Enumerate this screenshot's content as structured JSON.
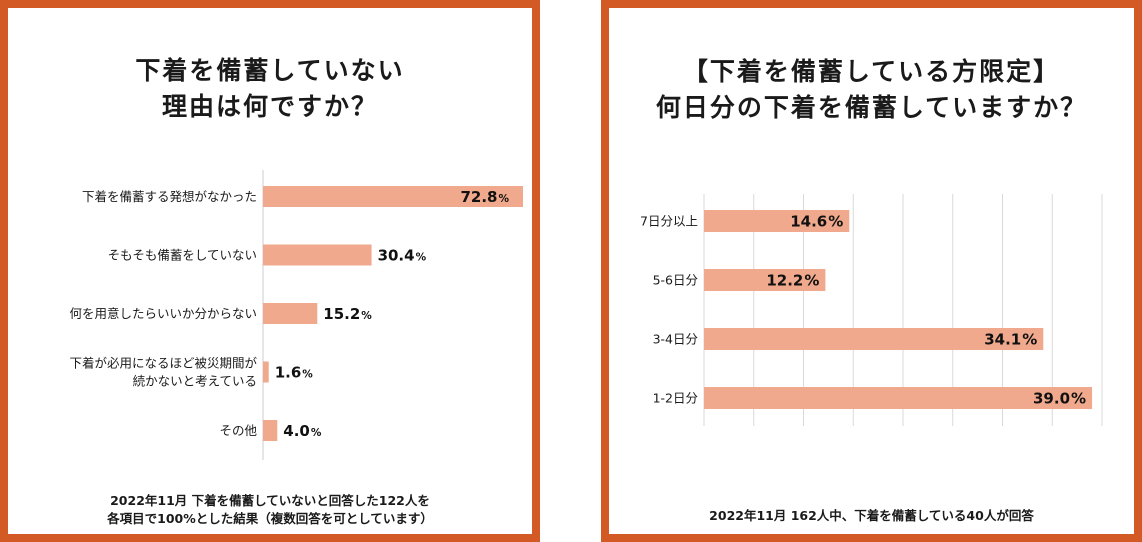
{
  "colors": {
    "border": "#d35a24",
    "bar": "#f0a98c",
    "grid": "#d9d9d9",
    "axis": "#cccccc"
  },
  "left": {
    "title_lines": [
      "下着を備蓄していない",
      "理由は何ですか？"
    ],
    "footnote_lines": [
      "2022年11月 下着を備蓄していないと回答した122人を",
      "各項目で100%とした結果（複数回答を可としています）"
    ]
  },
  "right": {
    "title_lines": [
      "【下着を備蓄している方限定】",
      "何日分の下着を備蓄していますか？"
    ],
    "footnote_lines": [
      "2022年11月 162人中、下着を備蓄している40人が回答"
    ]
  },
  "chart_data": [
    {
      "type": "bar",
      "orientation": "horizontal",
      "title": "下着を備蓄していない 理由は何ですか？",
      "categories": [
        [
          "下着を備蓄する発想がなかった"
        ],
        [
          "そもそも備蓄をしていない"
        ],
        [
          "何を用意したらいいか分からない"
        ],
        [
          "下着が必用になるほど被災期間が",
          "続かないと考えている"
        ],
        [
          "その他"
        ]
      ],
      "values": [
        72.8,
        30.4,
        15.2,
        1.6,
        4.0
      ],
      "value_labels": [
        "72.8",
        "30.4",
        "15.2",
        "1.6",
        "4.0"
      ],
      "unit": "%",
      "xlim": [
        0,
        72.8
      ],
      "grid": false
    },
    {
      "type": "bar",
      "orientation": "horizontal",
      "title": "【下着を備蓄している方限定】 何日分の下着を備蓄していますか？",
      "categories": [
        [
          "7日分以上"
        ],
        [
          "5-6日分"
        ],
        [
          "3-4日分"
        ],
        [
          "1-2日分"
        ]
      ],
      "values": [
        14.6,
        12.2,
        34.1,
        39.0
      ],
      "value_labels": [
        "14.6%",
        "12.2%",
        "34.1%",
        "39.0%"
      ],
      "unit": "%",
      "xlim": [
        0,
        40
      ],
      "grid": true,
      "grid_lines": 8
    }
  ]
}
